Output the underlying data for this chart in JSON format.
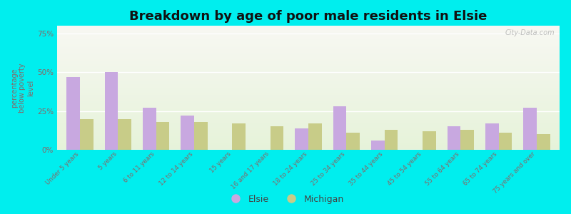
{
  "title": "Breakdown by age of poor male residents in Elsie",
  "ylabel": "percentage\nbelow poverty\nlevel",
  "categories": [
    "Under 5 years",
    "5 years",
    "6 to 11 years",
    "12 to 14 years",
    "15 years",
    "16 and 17 years",
    "18 to 24 years",
    "25 to 34 years",
    "35 to 44 years",
    "45 to 54 years",
    "55 to 64 years",
    "65 to 74 years",
    "75 years and over"
  ],
  "elsie_values": [
    47,
    50,
    27,
    22,
    0,
    0,
    14,
    28,
    6,
    0,
    15,
    17,
    27
  ],
  "michigan_values": [
    20,
    20,
    18,
    18,
    17,
    15,
    17,
    11,
    13,
    12,
    13,
    11,
    10
  ],
  "elsie_color": "#c8a8e0",
  "michigan_color": "#c8cc88",
  "bg_outer": "#00eeee",
  "ylim": [
    0,
    80
  ],
  "yticks": [
    0,
    25,
    50,
    75
  ],
  "ytick_labels": [
    "0%",
    "25%",
    "50%",
    "75%"
  ],
  "bar_width": 0.35,
  "title_fontsize": 13,
  "legend_labels": [
    "Elsie",
    "Michigan"
  ],
  "watermark": "City-Data.com",
  "tick_color": "#886666",
  "ylabel_color": "#886666"
}
